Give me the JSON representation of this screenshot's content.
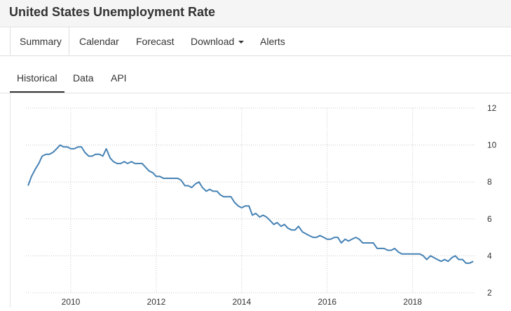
{
  "title": "United States Unemployment Rate",
  "main_tabs": [
    {
      "label": "Summary"
    },
    {
      "label": "Calendar"
    },
    {
      "label": "Forecast"
    },
    {
      "label": "Download"
    },
    {
      "label": "Alerts"
    }
  ],
  "sub_tabs": [
    {
      "label": "Historical"
    },
    {
      "label": "Data"
    },
    {
      "label": "API"
    }
  ],
  "colors": {
    "line": "#4682b4",
    "grid": "#c8c8c8"
  },
  "chart_data": {
    "type": "line",
    "title": "",
    "xlabel": "",
    "ylabel": "",
    "xlim": [
      2008.95,
      2019.45
    ],
    "ylim": [
      2,
      12
    ],
    "x_ticks": [
      2010,
      2012,
      2014,
      2016,
      2018
    ],
    "y_ticks": [
      2,
      4,
      6,
      8,
      10,
      12
    ],
    "y_axis_position": "right",
    "grid": true,
    "series": [
      {
        "values": [
          [
            2009.0,
            7.8
          ],
          [
            2009.08,
            8.3
          ],
          [
            2009.17,
            8.7
          ],
          [
            2009.25,
            9.0
          ],
          [
            2009.33,
            9.4
          ],
          [
            2009.42,
            9.5
          ],
          [
            2009.5,
            9.5
          ],
          [
            2009.58,
            9.6
          ],
          [
            2009.67,
            9.8
          ],
          [
            2009.75,
            10.0
          ],
          [
            2009.83,
            9.9
          ],
          [
            2009.92,
            9.9
          ],
          [
            2010.0,
            9.8
          ],
          [
            2010.08,
            9.8
          ],
          [
            2010.17,
            9.9
          ],
          [
            2010.25,
            9.9
          ],
          [
            2010.33,
            9.6
          ],
          [
            2010.42,
            9.4
          ],
          [
            2010.5,
            9.4
          ],
          [
            2010.58,
            9.5
          ],
          [
            2010.67,
            9.5
          ],
          [
            2010.75,
            9.4
          ],
          [
            2010.83,
            9.8
          ],
          [
            2010.92,
            9.3
          ],
          [
            2011.0,
            9.1
          ],
          [
            2011.08,
            9.0
          ],
          [
            2011.17,
            9.0
          ],
          [
            2011.25,
            9.1
          ],
          [
            2011.33,
            9.0
          ],
          [
            2011.42,
            9.1
          ],
          [
            2011.5,
            9.0
          ],
          [
            2011.58,
            9.0
          ],
          [
            2011.67,
            9.0
          ],
          [
            2011.75,
            8.8
          ],
          [
            2011.83,
            8.6
          ],
          [
            2011.92,
            8.5
          ],
          [
            2012.0,
            8.3
          ],
          [
            2012.08,
            8.3
          ],
          [
            2012.17,
            8.2
          ],
          [
            2012.25,
            8.2
          ],
          [
            2012.33,
            8.2
          ],
          [
            2012.42,
            8.2
          ],
          [
            2012.5,
            8.2
          ],
          [
            2012.58,
            8.1
          ],
          [
            2012.67,
            7.8
          ],
          [
            2012.75,
            7.8
          ],
          [
            2012.83,
            7.7
          ],
          [
            2012.92,
            7.9
          ],
          [
            2013.0,
            8.0
          ],
          [
            2013.08,
            7.7
          ],
          [
            2013.17,
            7.5
          ],
          [
            2013.25,
            7.6
          ],
          [
            2013.33,
            7.5
          ],
          [
            2013.42,
            7.5
          ],
          [
            2013.5,
            7.3
          ],
          [
            2013.58,
            7.2
          ],
          [
            2013.67,
            7.2
          ],
          [
            2013.75,
            7.2
          ],
          [
            2013.83,
            6.9
          ],
          [
            2013.92,
            6.7
          ],
          [
            2014.0,
            6.6
          ],
          [
            2014.08,
            6.7
          ],
          [
            2014.17,
            6.7
          ],
          [
            2014.25,
            6.2
          ],
          [
            2014.33,
            6.3
          ],
          [
            2014.42,
            6.1
          ],
          [
            2014.5,
            6.2
          ],
          [
            2014.58,
            6.1
          ],
          [
            2014.67,
            5.9
          ],
          [
            2014.75,
            5.7
          ],
          [
            2014.83,
            5.8
          ],
          [
            2014.92,
            5.6
          ],
          [
            2015.0,
            5.7
          ],
          [
            2015.08,
            5.5
          ],
          [
            2015.17,
            5.4
          ],
          [
            2015.25,
            5.4
          ],
          [
            2015.33,
            5.6
          ],
          [
            2015.42,
            5.3
          ],
          [
            2015.5,
            5.2
          ],
          [
            2015.58,
            5.1
          ],
          [
            2015.67,
            5.0
          ],
          [
            2015.75,
            5.0
          ],
          [
            2015.83,
            5.1
          ],
          [
            2015.92,
            5.0
          ],
          [
            2016.0,
            4.9
          ],
          [
            2016.08,
            4.9
          ],
          [
            2016.17,
            5.0
          ],
          [
            2016.25,
            5.0
          ],
          [
            2016.33,
            4.7
          ],
          [
            2016.42,
            4.9
          ],
          [
            2016.5,
            4.8
          ],
          [
            2016.58,
            4.9
          ],
          [
            2016.67,
            5.0
          ],
          [
            2016.75,
            4.9
          ],
          [
            2016.83,
            4.7
          ],
          [
            2016.92,
            4.7
          ],
          [
            2017.0,
            4.7
          ],
          [
            2017.08,
            4.7
          ],
          [
            2017.17,
            4.4
          ],
          [
            2017.25,
            4.4
          ],
          [
            2017.33,
            4.4
          ],
          [
            2017.42,
            4.3
          ],
          [
            2017.5,
            4.3
          ],
          [
            2017.58,
            4.4
          ],
          [
            2017.67,
            4.2
          ],
          [
            2017.75,
            4.1
          ],
          [
            2017.83,
            4.1
          ],
          [
            2017.92,
            4.1
          ],
          [
            2018.0,
            4.1
          ],
          [
            2018.08,
            4.1
          ],
          [
            2018.17,
            4.1
          ],
          [
            2018.25,
            4.0
          ],
          [
            2018.33,
            3.8
          ],
          [
            2018.42,
            4.0
          ],
          [
            2018.5,
            3.9
          ],
          [
            2018.58,
            3.8
          ],
          [
            2018.67,
            3.7
          ],
          [
            2018.75,
            3.8
          ],
          [
            2018.83,
            3.7
          ],
          [
            2018.92,
            3.9
          ],
          [
            2019.0,
            4.0
          ],
          [
            2019.08,
            3.8
          ],
          [
            2019.17,
            3.8
          ],
          [
            2019.25,
            3.6
          ],
          [
            2019.33,
            3.6
          ],
          [
            2019.42,
            3.7
          ]
        ]
      }
    ]
  }
}
